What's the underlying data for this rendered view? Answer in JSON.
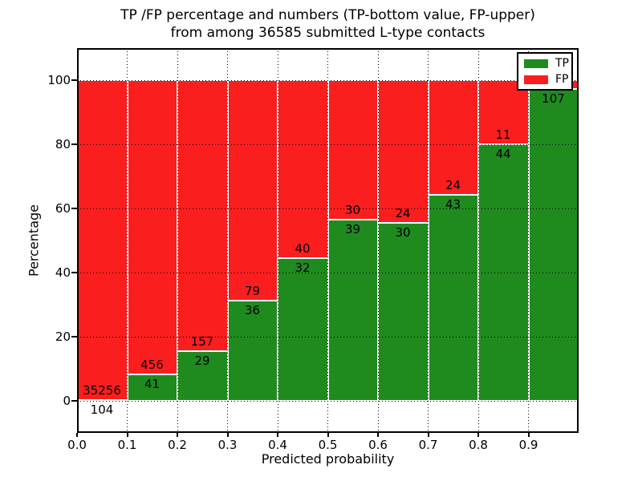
{
  "title": {
    "line1": "TP /FP percentage and numbers (TP-bottom value, FP-upper)",
    "line2": "from among 36585 submitted L-type contacts"
  },
  "x_axis": {
    "label": "Predicted probability",
    "tick_labels": [
      "0.0",
      "0.1",
      "0.2",
      "0.3",
      "0.4",
      "0.5",
      "0.6",
      "0.7",
      "0.8",
      "0.9"
    ]
  },
  "y_axis": {
    "label": "Percentage",
    "tick_values": [
      0,
      20,
      40,
      60,
      80,
      100
    ]
  },
  "legend": {
    "items": [
      {
        "label": "TP",
        "color": "#1f8b1f"
      },
      {
        "label": "FP",
        "color": "#fb1e1e"
      }
    ]
  },
  "colors": {
    "tp_green": "#1f8b1f",
    "fp_red": "#fb1e1e",
    "bar_edge": "#ffffff",
    "grid": "#000000"
  },
  "chart_data": {
    "type": "bar",
    "stacked": true,
    "title": "TP /FP percentage and numbers (TP-bottom value, FP-upper) from among 36585 submitted L-type contacts",
    "xlabel": "Predicted probability",
    "ylabel": "Percentage",
    "xlim": [
      0.0,
      1.0
    ],
    "ylim": [
      -10,
      110
    ],
    "grid": true,
    "legend_position": "upper right",
    "bin_edges": [
      0.0,
      0.1,
      0.2,
      0.3,
      0.4,
      0.5,
      0.6,
      0.7,
      0.8,
      0.9,
      1.0
    ],
    "series": [
      {
        "name": "TP",
        "color": "#1f8b1f",
        "counts": [
          104,
          41,
          29,
          36,
          32,
          39,
          30,
          43,
          44,
          107
        ],
        "pct": [
          0.3,
          8.2,
          15.6,
          31.3,
          44.4,
          56.5,
          55.6,
          64.2,
          80.0,
          97.3
        ]
      },
      {
        "name": "FP",
        "color": "#fb1e1e",
        "counts_visible": [
          35256,
          456,
          157,
          79,
          40,
          30,
          24,
          24,
          11,
          null
        ],
        "pct": [
          99.7,
          91.8,
          84.4,
          68.7,
          55.6,
          43.5,
          44.4,
          35.8,
          20.0,
          2.7
        ]
      }
    ],
    "bar_value_labels": {
      "fp": [
        "35256",
        "456",
        "157",
        "79",
        "40",
        "30",
        "24",
        "24",
        "11",
        ""
      ],
      "tp": [
        "104",
        "41",
        "29",
        "36",
        "32",
        "39",
        "30",
        "43",
        "44",
        "107"
      ]
    }
  }
}
